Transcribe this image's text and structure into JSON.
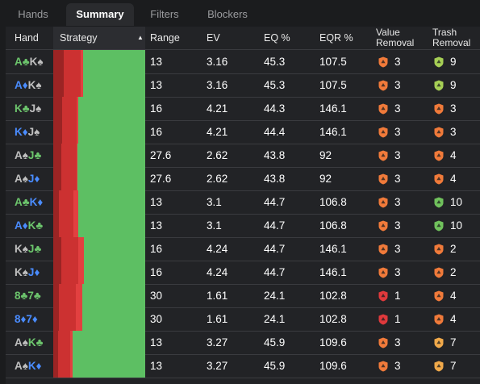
{
  "tabs": [
    {
      "label": "Hands",
      "active": false
    },
    {
      "label": "Summary",
      "active": true
    },
    {
      "label": "Filters",
      "active": false
    },
    {
      "label": "Blockers",
      "active": false
    }
  ],
  "columns": {
    "hand": "Hand",
    "strategy": "Strategy",
    "range": "Range",
    "ev": "EV",
    "eq": "EQ %",
    "eqr": "EQR %",
    "value_removal_1": "Value",
    "value_removal_2": "Removal",
    "trash_removal_1": "Trash",
    "trash_removal_2": "Removal",
    "sort_indicator": "▲"
  },
  "colors": {
    "strategy_dark": "#9b2424",
    "strategy_mid": "#cc3131",
    "strategy_light": "#e24040",
    "strategy_green": "#5dbf63",
    "badge_orange": "#f07a3a",
    "badge_red": "#e0393c",
    "badge_lime": "#a6cf55",
    "badge_yellow": "#f0a94a",
    "badge_green": "#70c15c"
  },
  "rows": [
    {
      "c1": "A",
      "s1": "♣",
      "k1": "green",
      "c2": "K",
      "s2": "♠",
      "k2": "gray",
      "strategy": [
        0.11,
        0.18,
        0.03,
        0.68
      ],
      "range": "13",
      "ev": "3.16",
      "eq": "45.3",
      "eqr": "107.5",
      "vr": "3",
      "vr_color": "orange",
      "tr": "9",
      "tr_color": "lime"
    },
    {
      "c1": "A",
      "s1": "♦",
      "k1": "blue",
      "c2": "K",
      "s2": "♠",
      "k2": "gray",
      "strategy": [
        0.11,
        0.18,
        0.03,
        0.68
      ],
      "range": "13",
      "ev": "3.16",
      "eq": "45.3",
      "eqr": "107.5",
      "vr": "3",
      "vr_color": "orange",
      "tr": "9",
      "tr_color": "lime"
    },
    {
      "c1": "K",
      "s1": "♣",
      "k1": "green",
      "c2": "J",
      "s2": "♠",
      "k2": "gray",
      "strategy": [
        0.1,
        0.16,
        0.02,
        0.72
      ],
      "range": "16",
      "ev": "4.21",
      "eq": "44.3",
      "eqr": "146.1",
      "vr": "3",
      "vr_color": "orange",
      "tr": "3",
      "tr_color": "orange"
    },
    {
      "c1": "K",
      "s1": "♦",
      "k1": "blue",
      "c2": "J",
      "s2": "♠",
      "k2": "gray",
      "strategy": [
        0.1,
        0.16,
        0.02,
        0.72
      ],
      "range": "16",
      "ev": "4.21",
      "eq": "44.4",
      "eqr": "146.1",
      "vr": "3",
      "vr_color": "orange",
      "tr": "3",
      "tr_color": "orange"
    },
    {
      "c1": "A",
      "s1": "♠",
      "k1": "gray",
      "c2": "J",
      "s2": "♣",
      "k2": "green",
      "strategy": [
        0.09,
        0.17,
        0.01,
        0.73
      ],
      "range": "27.6",
      "ev": "2.62",
      "eq": "43.8",
      "eqr": "92",
      "vr": "3",
      "vr_color": "orange",
      "tr": "4",
      "tr_color": "orange"
    },
    {
      "c1": "A",
      "s1": "♠",
      "k1": "gray",
      "c2": "J",
      "s2": "♦",
      "k2": "blue",
      "strategy": [
        0.09,
        0.17,
        0.01,
        0.73
      ],
      "range": "27.6",
      "ev": "2.62",
      "eq": "43.8",
      "eqr": "92",
      "vr": "3",
      "vr_color": "orange",
      "tr": "4",
      "tr_color": "orange"
    },
    {
      "c1": "A",
      "s1": "♣",
      "k1": "green",
      "c2": "K",
      "s2": "♦",
      "k2": "blue",
      "strategy": [
        0.06,
        0.16,
        0.05,
        0.73
      ],
      "range": "13",
      "ev": "3.1",
      "eq": "44.7",
      "eqr": "106.8",
      "vr": "3",
      "vr_color": "orange",
      "tr": "10",
      "tr_color": "green"
    },
    {
      "c1": "A",
      "s1": "♦",
      "k1": "blue",
      "c2": "K",
      "s2": "♣",
      "k2": "green",
      "strategy": [
        0.06,
        0.16,
        0.05,
        0.73
      ],
      "range": "13",
      "ev": "3.1",
      "eq": "44.7",
      "eqr": "106.8",
      "vr": "3",
      "vr_color": "orange",
      "tr": "10",
      "tr_color": "green"
    },
    {
      "c1": "K",
      "s1": "♠",
      "k1": "gray",
      "c2": "J",
      "s2": "♣",
      "k2": "green",
      "strategy": [
        0.09,
        0.18,
        0.06,
        0.67
      ],
      "range": "16",
      "ev": "4.24",
      "eq": "44.7",
      "eqr": "146.1",
      "vr": "3",
      "vr_color": "orange",
      "tr": "2",
      "tr_color": "orange"
    },
    {
      "c1": "K",
      "s1": "♠",
      "k1": "gray",
      "c2": "J",
      "s2": "♦",
      "k2": "blue",
      "strategy": [
        0.09,
        0.18,
        0.06,
        0.67
      ],
      "range": "16",
      "ev": "4.24",
      "eq": "44.7",
      "eqr": "146.1",
      "vr": "3",
      "vr_color": "orange",
      "tr": "2",
      "tr_color": "orange"
    },
    {
      "c1": "8",
      "s1": "♣",
      "k1": "green",
      "c2": "7",
      "s2": "♣",
      "k2": "green",
      "strategy": [
        0.06,
        0.18,
        0.07,
        0.69
      ],
      "range": "30",
      "ev": "1.61",
      "eq": "24.1",
      "eqr": "102.8",
      "vr": "1",
      "vr_color": "red",
      "tr": "4",
      "tr_color": "orange"
    },
    {
      "c1": "8",
      "s1": "♦",
      "k1": "blue",
      "c2": "7",
      "s2": "♦",
      "k2": "blue",
      "strategy": [
        0.06,
        0.18,
        0.07,
        0.69
      ],
      "range": "30",
      "ev": "1.61",
      "eq": "24.1",
      "eqr": "102.8",
      "vr": "1",
      "vr_color": "red",
      "tr": "4",
      "tr_color": "orange"
    },
    {
      "c1": "A",
      "s1": "♠",
      "k1": "gray",
      "c2": "K",
      "s2": "♣",
      "k2": "green",
      "strategy": [
        0.05,
        0.13,
        0.03,
        0.79
      ],
      "range": "13",
      "ev": "3.27",
      "eq": "45.9",
      "eqr": "109.6",
      "vr": "3",
      "vr_color": "orange",
      "tr": "7",
      "tr_color": "yellow"
    },
    {
      "c1": "A",
      "s1": "♠",
      "k1": "gray",
      "c2": "K",
      "s2": "♦",
      "k2": "blue",
      "strategy": [
        0.05,
        0.13,
        0.03,
        0.79
      ],
      "range": "13",
      "ev": "3.27",
      "eq": "45.9",
      "eqr": "109.6",
      "vr": "3",
      "vr_color": "orange",
      "tr": "7",
      "tr_color": "yellow"
    }
  ]
}
